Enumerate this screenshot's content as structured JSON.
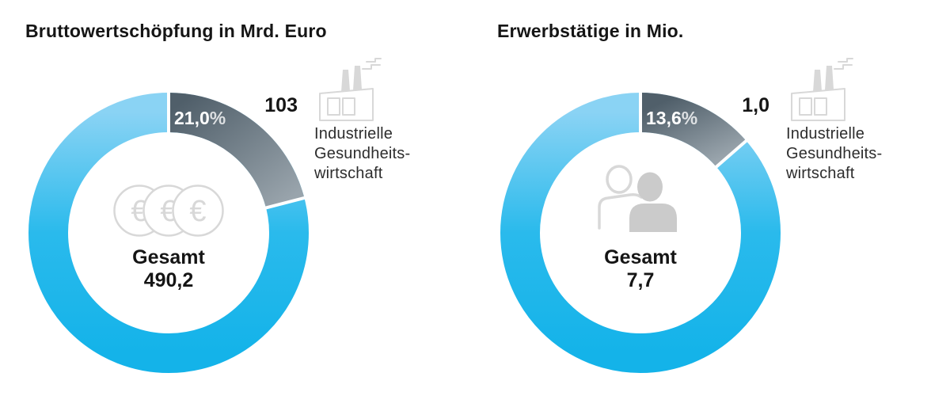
{
  "colors": {
    "cyan": "#14B3E9",
    "cyan_mid": "#2ABAEC",
    "cyan_light": "#8AD3F4",
    "slate_dark": "#505F6A",
    "slate_light": "#99A4AC",
    "icon_gray": "#D8D8D8",
    "icon_gray_fill": "#CBCBCB",
    "text_black": "#151515",
    "text_dark": "#2D2D2D",
    "pct_white": "#FFFFFF"
  },
  "icons": {
    "euro_symbol": "€"
  },
  "charts": [
    {
      "title": "Bruttowertschöpfung in Mrd. Euro",
      "highlight_pct_display": "21,0",
      "pct_sign": "%",
      "highlight_value_display": "103",
      "annotation_lines": [
        "Industrielle",
        "Gesundheits-",
        "wirtschaft"
      ],
      "center_label": "Gesamt",
      "center_value": "490,2"
    },
    {
      "title": "Erwerbstätige in Mio.",
      "highlight_pct_display": "13,6",
      "pct_sign": "%",
      "highlight_value_display": "1,0",
      "annotation_lines": [
        "Industrielle",
        "Gesundheits-",
        "wirtschaft"
      ],
      "center_label": "Gesamt",
      "center_value": "7,7"
    }
  ],
  "chart_data": [
    {
      "type": "pie",
      "subtype": "donut",
      "title": "Bruttowertschöpfung in Mrd. Euro",
      "unit": "Mrd. Euro",
      "total": {
        "label": "Gesamt",
        "value": 490.2
      },
      "slices": [
        {
          "label": "Industrielle Gesundheitswirtschaft",
          "percent": 21.0,
          "value": 103,
          "color": "slate-gray-gradient"
        },
        {
          "role": "remainder",
          "percent": 79.0,
          "color": "cyan-gradient"
        }
      ],
      "start_angle_deg": 0,
      "direction": "clockwise",
      "legend_position": "right",
      "center_icon": "euro-coins",
      "slice_icon": "factory"
    },
    {
      "type": "pie",
      "subtype": "donut",
      "title": "Erwerbstätige in Mio.",
      "unit": "Mio.",
      "total": {
        "label": "Gesamt",
        "value": 7.7
      },
      "slices": [
        {
          "label": "Industrielle Gesundheitswirtschaft",
          "percent": 13.6,
          "value": 1.0,
          "color": "slate-gray-gradient"
        },
        {
          "role": "remainder",
          "percent": 86.4,
          "color": "cyan-gradient"
        }
      ],
      "start_angle_deg": 0,
      "direction": "clockwise",
      "legend_position": "right",
      "center_icon": "people",
      "slice_icon": "factory"
    }
  ]
}
